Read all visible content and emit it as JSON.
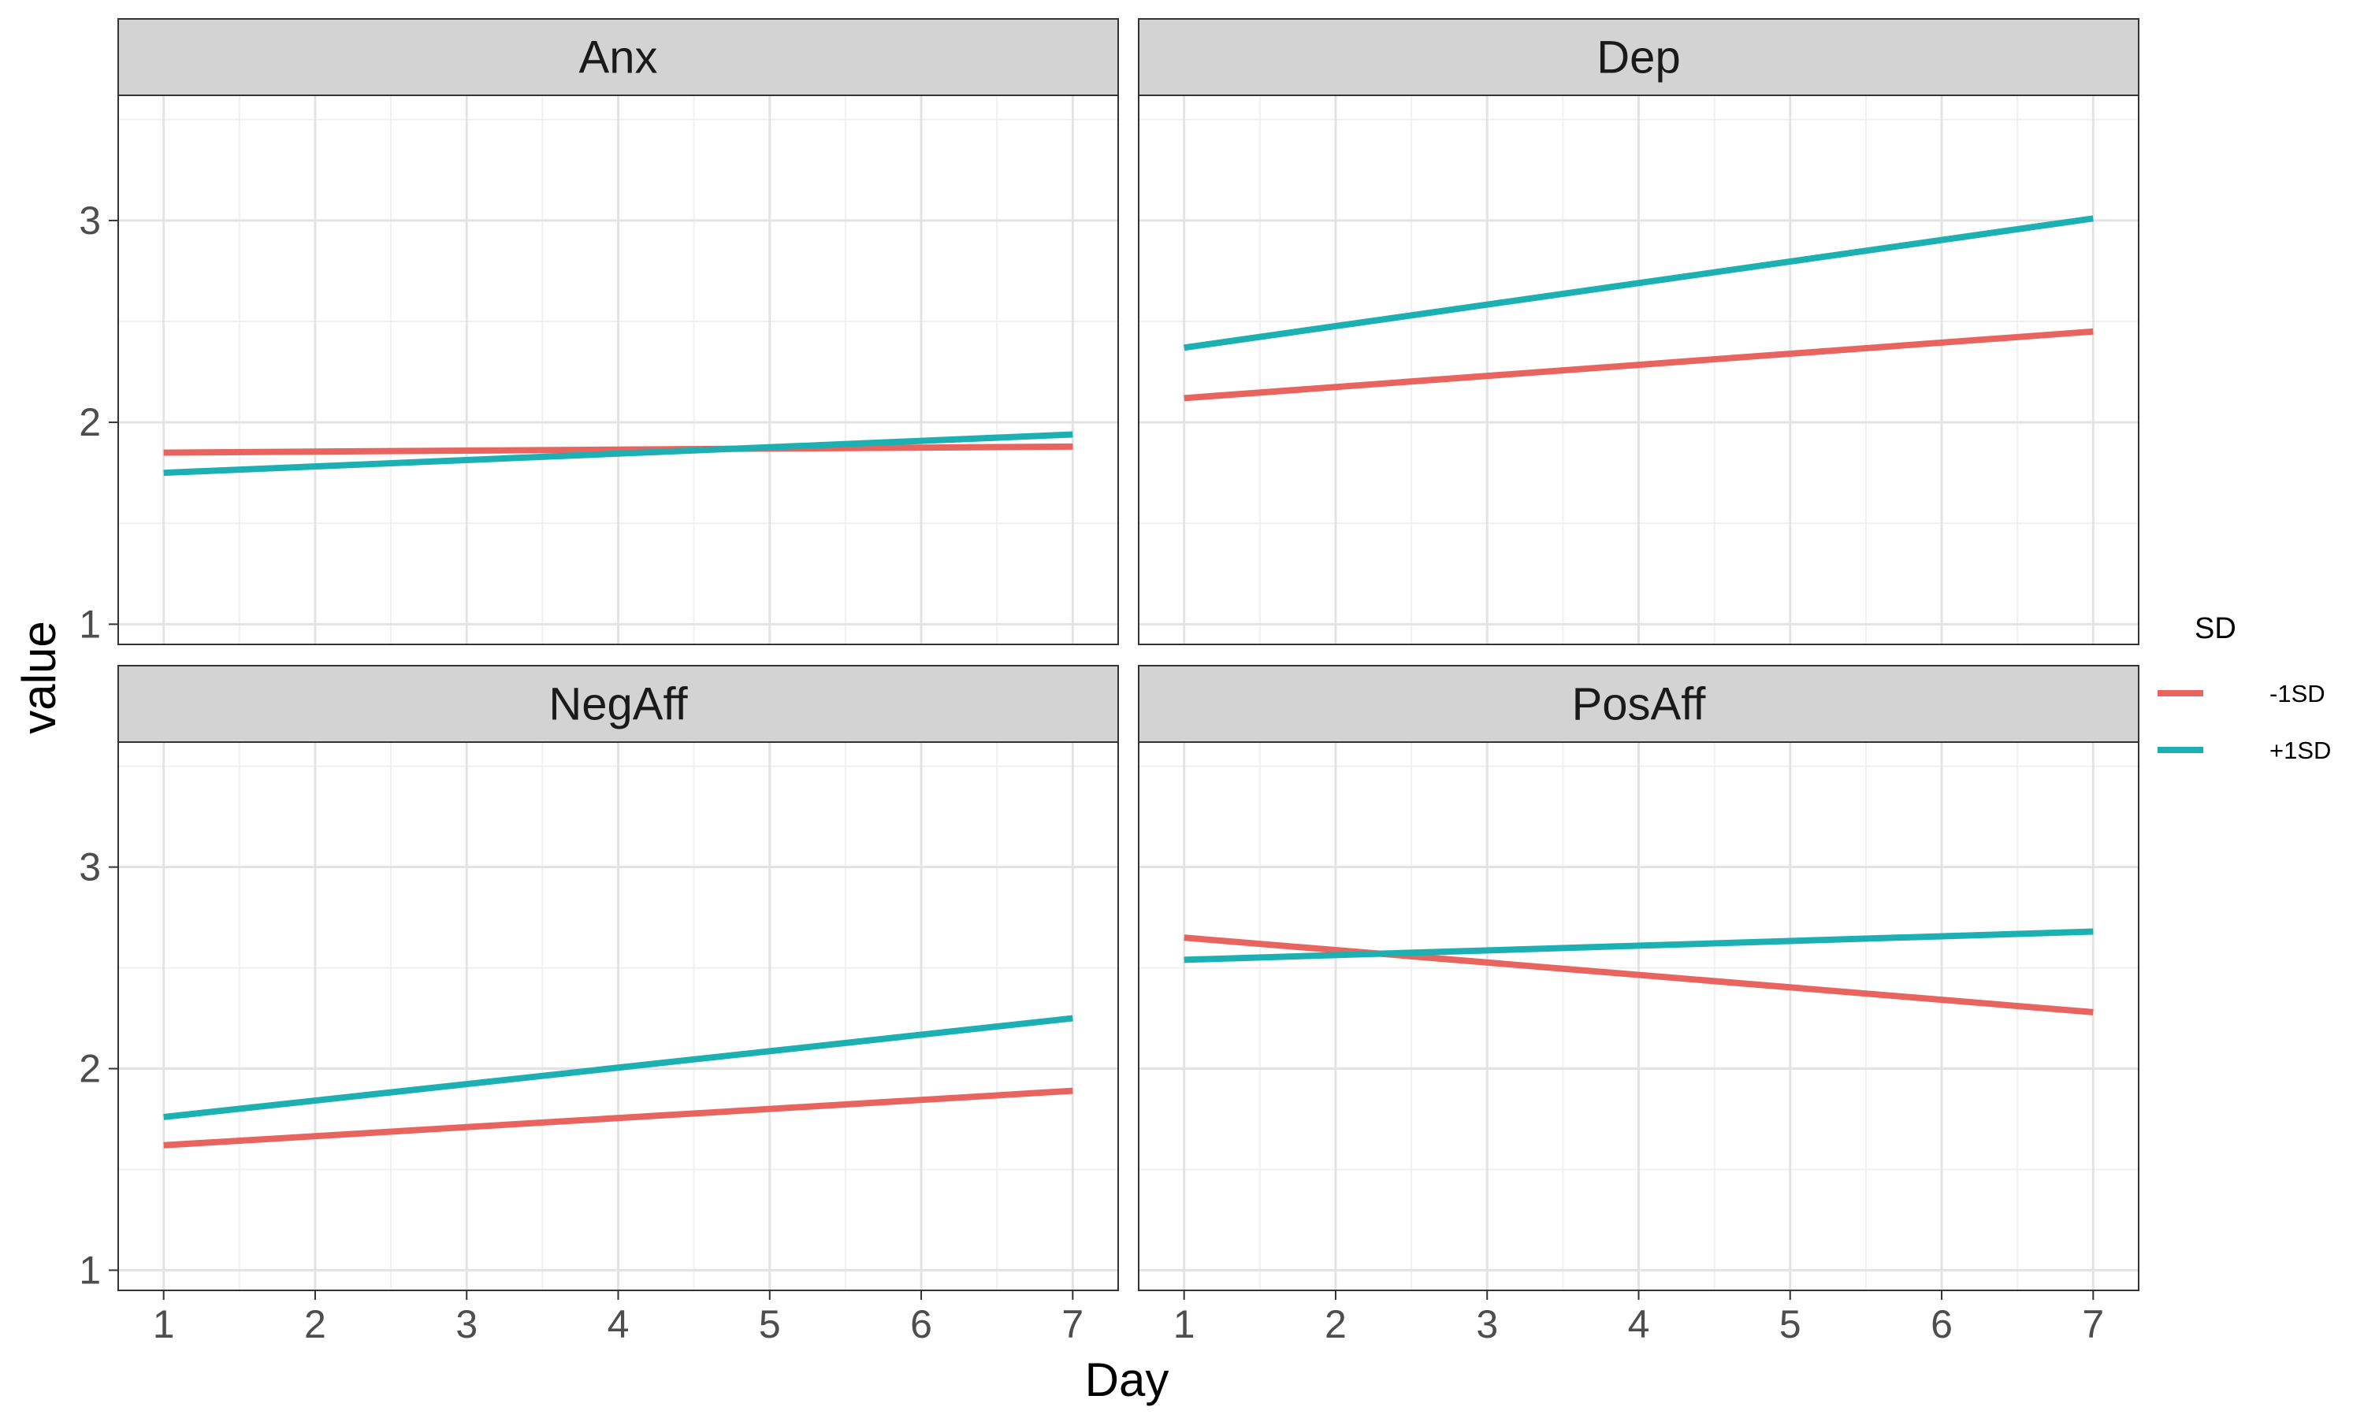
{
  "chart_data": {
    "type": "line",
    "facet_layout": "2x2 grid",
    "xlabel": "Day",
    "ylabel": "value",
    "xlim": [
      0.7,
      7.3
    ],
    "ylim": [
      0.9,
      3.62
    ],
    "x_ticks": [
      1,
      2,
      3,
      4,
      5,
      6,
      7
    ],
    "y_ticks": [
      1,
      2,
      3
    ],
    "grid": true,
    "legend": {
      "title": "SD",
      "placement": "right",
      "entries": [
        {
          "label": "-1SD",
          "color": "#E8655F"
        },
        {
          "label": "+1SD",
          "color": "#1DB0B2"
        }
      ]
    },
    "panels": [
      {
        "title": "Anx",
        "series": [
          {
            "name": "-1SD",
            "color": "#E8655F",
            "x": [
              1,
              7
            ],
            "y": [
              1.85,
              1.88
            ]
          },
          {
            "name": "+1SD",
            "color": "#1DB0B2",
            "x": [
              1,
              7
            ],
            "y": [
              1.75,
              1.94
            ]
          }
        ]
      },
      {
        "title": "Dep",
        "series": [
          {
            "name": "-1SD",
            "color": "#E8655F",
            "x": [
              1,
              7
            ],
            "y": [
              2.12,
              2.45
            ]
          },
          {
            "name": "+1SD",
            "color": "#1DB0B2",
            "x": [
              1,
              7
            ],
            "y": [
              2.37,
              3.01
            ]
          }
        ]
      },
      {
        "title": "NegAff",
        "series": [
          {
            "name": "-1SD",
            "color": "#E8655F",
            "x": [
              1,
              7
            ],
            "y": [
              1.62,
              1.89
            ]
          },
          {
            "name": "+1SD",
            "color": "#1DB0B2",
            "x": [
              1,
              7
            ],
            "y": [
              1.76,
              2.25
            ]
          }
        ]
      },
      {
        "title": "PosAff",
        "series": [
          {
            "name": "-1SD",
            "color": "#E8655F",
            "x": [
              1,
              7
            ],
            "y": [
              2.65,
              2.28
            ]
          },
          {
            "name": "+1SD",
            "color": "#1DB0B2",
            "x": [
              1,
              7
            ],
            "y": [
              2.54,
              2.68
            ]
          }
        ]
      }
    ]
  }
}
